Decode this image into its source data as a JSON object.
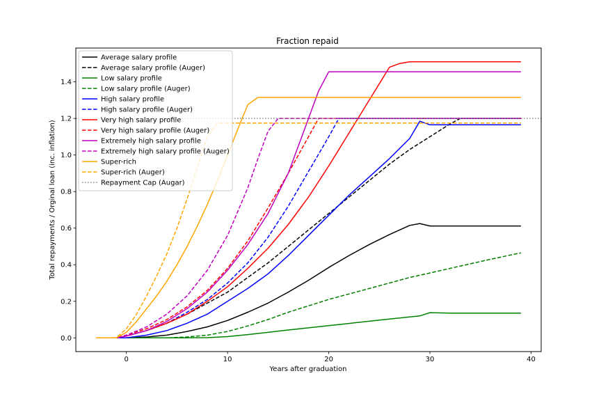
{
  "chart_data": {
    "type": "line",
    "title": "Fraction repaid",
    "xlabel": "Years after graduation",
    "ylabel": "Total repayments / Orginal loan (inc. inflation)",
    "xlim": [
      -5,
      41
    ],
    "ylim": [
      -0.075,
      1.585
    ],
    "xticks": [
      0,
      10,
      20,
      30,
      40
    ],
    "yticks": [
      0.0,
      0.2,
      0.4,
      0.6,
      0.8,
      1.0,
      1.2,
      1.4
    ],
    "xtick_labels": [
      "0",
      "10",
      "20",
      "30",
      "40"
    ],
    "ytick_labels": [
      "0.0",
      "0.2",
      "0.4",
      "0.6",
      "0.8",
      "1.0",
      "1.2",
      "1.4"
    ],
    "legend_position": "top-left",
    "series": [
      {
        "name": "Average salary profile",
        "color": "#000000",
        "dash": "solid",
        "x": [
          -3,
          -1,
          0,
          2,
          4,
          6,
          8,
          10,
          12,
          14,
          16,
          18,
          20,
          22,
          24,
          26,
          28,
          29,
          30,
          32,
          34,
          36,
          39
        ],
        "y": [
          0,
          0,
          0,
          0.005,
          0.015,
          0.035,
          0.06,
          0.095,
          0.14,
          0.19,
          0.25,
          0.315,
          0.385,
          0.45,
          0.51,
          0.565,
          0.615,
          0.625,
          0.612,
          0.612,
          0.612,
          0.612,
          0.612
        ]
      },
      {
        "name": "Average salary profile (Auger)",
        "color": "#000000",
        "dash": "dashed",
        "x": [
          -3,
          -1,
          0,
          2,
          4,
          6,
          8,
          10,
          12,
          14,
          16,
          18,
          20,
          22,
          24,
          26,
          28,
          30,
          32,
          33,
          36,
          39
        ],
        "y": [
          0,
          0,
          0.01,
          0.04,
          0.08,
          0.13,
          0.19,
          0.25,
          0.33,
          0.41,
          0.5,
          0.59,
          0.68,
          0.77,
          0.86,
          0.95,
          1.03,
          1.1,
          1.17,
          1.2,
          1.2,
          1.2
        ]
      },
      {
        "name": "Low salary profile",
        "color": "#008000",
        "dash": "solid",
        "x": [
          -3,
          -1,
          0,
          4,
          8,
          10,
          12,
          14,
          16,
          18,
          20,
          22,
          24,
          26,
          29,
          30,
          32,
          34,
          36,
          39
        ],
        "y": [
          0,
          0,
          0,
          0,
          0.001,
          0.007,
          0.018,
          0.03,
          0.043,
          0.055,
          0.067,
          0.079,
          0.091,
          0.103,
          0.12,
          0.138,
          0.135,
          0.135,
          0.135,
          0.135
        ]
      },
      {
        "name": "Low salary profile (Auger)",
        "color": "#008000",
        "dash": "dashed",
        "x": [
          -3,
          -1,
          0,
          2,
          4,
          6,
          8,
          10,
          12,
          14,
          16,
          18,
          20,
          22,
          24,
          26,
          28,
          30,
          32,
          34,
          36,
          39
        ],
        "y": [
          0,
          0,
          0,
          0,
          0,
          0.005,
          0.015,
          0.035,
          0.065,
          0.1,
          0.14,
          0.175,
          0.21,
          0.24,
          0.27,
          0.3,
          0.33,
          0.355,
          0.38,
          0.405,
          0.43,
          0.465
        ]
      },
      {
        "name": "High salary profile",
        "color": "#0000ff",
        "dash": "solid",
        "x": [
          -3,
          -1,
          0,
          2,
          4,
          6,
          8,
          10,
          12,
          14,
          16,
          18,
          20,
          22,
          24,
          26,
          28,
          29,
          30,
          32,
          34,
          36,
          39
        ],
        "y": [
          0,
          0,
          0,
          0.015,
          0.04,
          0.08,
          0.13,
          0.2,
          0.27,
          0.35,
          0.45,
          0.56,
          0.67,
          0.78,
          0.88,
          0.98,
          1.09,
          1.185,
          1.165,
          1.165,
          1.165,
          1.165,
          1.165
        ]
      },
      {
        "name": "High salary profile (Auger)",
        "color": "#0000ff",
        "dash": "dashed",
        "x": [
          -3,
          -1,
          0,
          2,
          4,
          6,
          8,
          10,
          12,
          14,
          16,
          18,
          20,
          21,
          24,
          28,
          32,
          36,
          39
        ],
        "y": [
          0,
          0,
          0.01,
          0.04,
          0.08,
          0.14,
          0.21,
          0.3,
          0.41,
          0.55,
          0.72,
          0.91,
          1.1,
          1.2,
          1.2,
          1.2,
          1.2,
          1.2,
          1.2
        ]
      },
      {
        "name": "Very high salary profile",
        "color": "#ff0000",
        "dash": "solid",
        "x": [
          -3,
          -1,
          0,
          2,
          4,
          6,
          8,
          10,
          12,
          14,
          16,
          18,
          20,
          22,
          24,
          26,
          27,
          28,
          30,
          34,
          39
        ],
        "y": [
          0,
          0,
          0.01,
          0.04,
          0.08,
          0.13,
          0.2,
          0.28,
          0.38,
          0.49,
          0.62,
          0.77,
          0.94,
          1.12,
          1.3,
          1.48,
          1.5,
          1.51,
          1.51,
          1.51,
          1.51
        ]
      },
      {
        "name": "Very high salary profile (Auger)",
        "color": "#ff0000",
        "dash": "dashed",
        "x": [
          -3,
          -1,
          0,
          2,
          4,
          6,
          8,
          10,
          12,
          14,
          16,
          18,
          19,
          22,
          26,
          30,
          34,
          39
        ],
        "y": [
          0,
          0,
          0.015,
          0.05,
          0.1,
          0.17,
          0.26,
          0.38,
          0.53,
          0.71,
          0.9,
          1.1,
          1.2,
          1.2,
          1.2,
          1.2,
          1.2,
          1.2
        ]
      },
      {
        "name": "Extremely high salary profile",
        "color": "#c000c0",
        "dash": "solid",
        "x": [
          -3,
          -1,
          0,
          2,
          4,
          6,
          8,
          10,
          12,
          14,
          16,
          17,
          18,
          19,
          20,
          24,
          28,
          32,
          36,
          39
        ],
        "y": [
          0,
          0,
          0.01,
          0.04,
          0.09,
          0.16,
          0.25,
          0.37,
          0.51,
          0.68,
          0.9,
          1.05,
          1.2,
          1.35,
          1.455,
          1.455,
          1.455,
          1.455,
          1.455,
          1.455
        ]
      },
      {
        "name": "Extremely high salary profile (Auger)",
        "color": "#c000c0",
        "dash": "dashed",
        "x": [
          -3,
          -1,
          0,
          2,
          4,
          6,
          8,
          10,
          12,
          13,
          14,
          15,
          18,
          22,
          26,
          30,
          34,
          39
        ],
        "y": [
          0,
          0,
          0.015,
          0.06,
          0.13,
          0.23,
          0.37,
          0.56,
          0.82,
          0.98,
          1.13,
          1.2,
          1.2,
          1.2,
          1.2,
          1.2,
          1.2,
          1.2
        ]
      },
      {
        "name": "Super-rich",
        "color": "#ffa500",
        "dash": "solid",
        "x": [
          -3,
          -1,
          0,
          1,
          2,
          3,
          4,
          5,
          6,
          7,
          8,
          9,
          10,
          11,
          12,
          13,
          14,
          18,
          24,
          30,
          39
        ],
        "y": [
          0,
          0,
          0.03,
          0.09,
          0.16,
          0.23,
          0.31,
          0.4,
          0.5,
          0.61,
          0.73,
          0.86,
          1.0,
          1.14,
          1.275,
          1.315,
          1.315,
          1.315,
          1.315,
          1.315,
          1.315
        ]
      },
      {
        "name": "Super-rich (Auger)",
        "color": "#ffa500",
        "dash": "dashed",
        "x": [
          -3,
          -1,
          0,
          1,
          2,
          3,
          4,
          5,
          6,
          7,
          8,
          9,
          12,
          18,
          24,
          30,
          39
        ],
        "y": [
          0,
          0,
          0.05,
          0.13,
          0.23,
          0.34,
          0.46,
          0.6,
          0.76,
          0.93,
          1.1,
          1.175,
          1.175,
          1.175,
          1.175,
          1.175,
          1.175
        ]
      },
      {
        "name": "Repayment Cap (Augar)",
        "color": "#808080",
        "dash": "dotted",
        "x": [
          -5,
          41
        ],
        "y": [
          1.2,
          1.2
        ]
      }
    ]
  }
}
